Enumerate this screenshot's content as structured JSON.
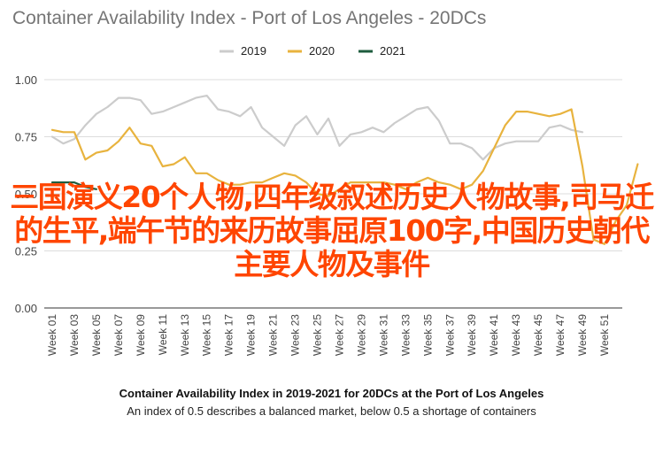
{
  "chart_data": {
    "type": "line",
    "title": "Container Availability Index - Port of Los Angeles - 20DCs",
    "ylim": [
      0,
      1
    ],
    "yticks": [
      "0.00",
      "0.25",
      "0.50",
      "0.75",
      "1.00"
    ],
    "x_labels": [
      "Week 01",
      "Week 03",
      "Week 05",
      "Week 07",
      "Week 09",
      "Week 11",
      "Week 13",
      "Week 15",
      "Week 17",
      "Week 19",
      "Week 21",
      "Week 23",
      "Week 25",
      "Week 27",
      "Week 29",
      "Week 31",
      "Week 33",
      "Week 35",
      "Week 37",
      "Week 39",
      "Week 41",
      "Week 43",
      "Week 45",
      "Week 47",
      "Week 49",
      "Week 51"
    ],
    "legend_position": "top",
    "series": [
      {
        "name": "2019",
        "color": "#cccccc",
        "values": [
          0.75,
          0.72,
          0.74,
          0.8,
          0.85,
          0.88,
          0.92,
          0.92,
          0.91,
          0.85,
          0.86,
          0.88,
          0.9,
          0.92,
          0.93,
          0.87,
          0.86,
          0.84,
          0.88,
          0.79,
          0.75,
          0.71,
          0.8,
          0.84,
          0.76,
          0.83,
          0.71,
          0.76,
          0.77,
          0.79,
          0.77,
          0.81,
          0.84,
          0.87,
          0.88,
          0.82,
          0.72,
          0.72,
          0.7,
          0.65,
          0.7,
          0.72,
          0.73,
          0.73,
          0.73,
          0.79,
          0.8,
          0.78,
          0.77
        ]
      },
      {
        "name": "2020",
        "color": "#e8b33e",
        "values": [
          0.78,
          0.77,
          0.77,
          0.65,
          0.68,
          0.69,
          0.73,
          0.79,
          0.72,
          0.71,
          0.62,
          0.63,
          0.66,
          0.59,
          0.59,
          0.56,
          0.54,
          0.54,
          0.55,
          0.55,
          0.57,
          0.59,
          0.58,
          0.55,
          0.5,
          0.49,
          0.52,
          0.55,
          0.55,
          0.55,
          0.55,
          0.54,
          0.52,
          0.55,
          0.57,
          0.55,
          0.54,
          0.52,
          0.54,
          0.6,
          0.7,
          0.8,
          0.86,
          0.86,
          0.85,
          0.84,
          0.85,
          0.87,
          0.62,
          0.3,
          0.28,
          0.38,
          0.45,
          0.63
        ]
      },
      {
        "name": "2021",
        "color": "#1e5c3e",
        "values": [
          0.55,
          0.55,
          0.55,
          0.53,
          0.52
        ]
      }
    ],
    "caption": "Container Availability Index in 2019-2021 for 20DCs at the Port of Los Angeles",
    "subcaption": "An index of 0.5 describes a balanced market, below 0.5 a shortage of containers"
  },
  "overlay": {
    "text": "三国演义20个人物,四年级叙述历史人物故事,司马迁的生平,端午节的来历故事屈原100字,中国历史朝代主要人物及事件",
    "color": "#ff4500"
  }
}
